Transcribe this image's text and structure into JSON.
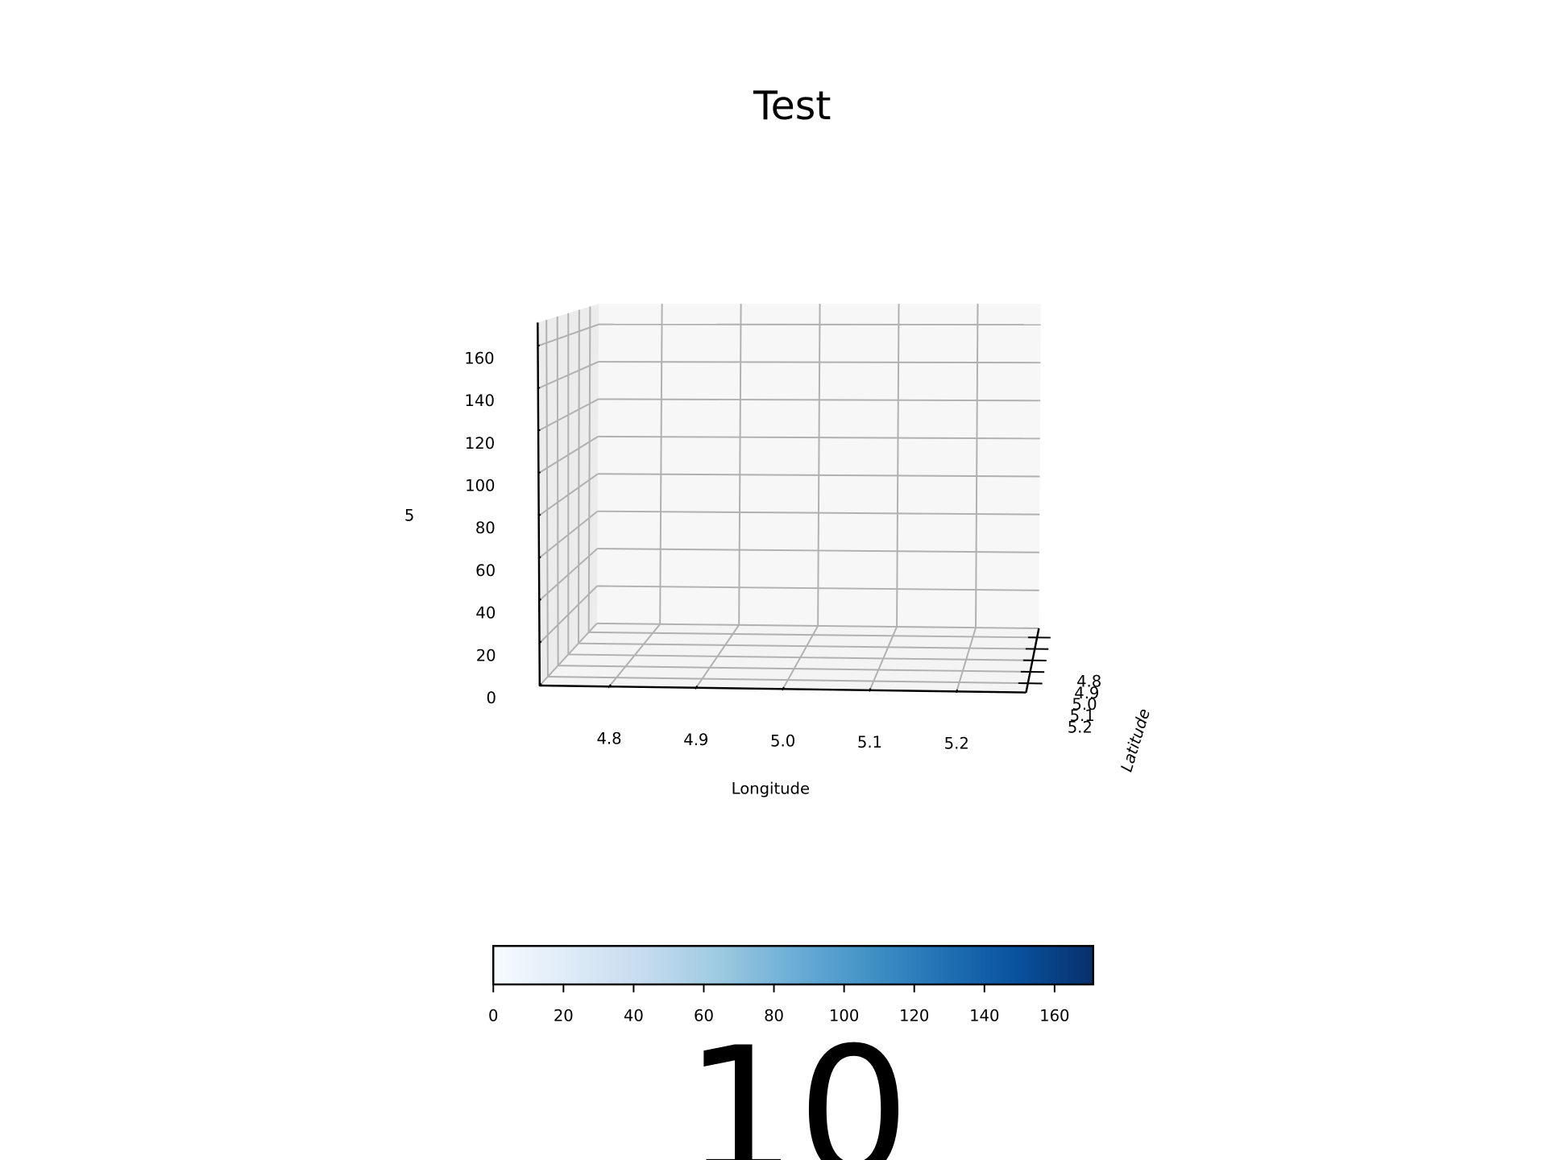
{
  "chart_data": {
    "type": "scatter3d",
    "title": "Test",
    "xlabel": "Longitude",
    "ylabel": "Latitude",
    "zlabel": "5",
    "xlim": [
      4.72,
      5.28
    ],
    "ylim": [
      4.72,
      5.28
    ],
    "zlim": [
      0,
      171
    ],
    "xticks": [
      4.8,
      4.9,
      {
        "value": 5,
        "label": "5.0"
      },
      5.1,
      5.2
    ],
    "yticks": [
      4.8,
      4.9,
      {
        "value": 5,
        "label": "5.0"
      },
      5.1,
      5.2
    ],
    "zticks": [
      0,
      20,
      40,
      60,
      80,
      100,
      120,
      140,
      160
    ],
    "grid": true,
    "colorbar": {
      "label": "10",
      "cmap": "Blues",
      "clim": [
        0,
        171
      ],
      "ticks": [
        0,
        20,
        40,
        60,
        80,
        100,
        120,
        140,
        160
      ],
      "colors": [
        "#f7fbff",
        "#deebf7",
        "#c6dbef",
        "#9ecae1",
        "#6baed6",
        "#4292c6",
        "#2171b5",
        "#08519c",
        "#08306b"
      ]
    }
  }
}
